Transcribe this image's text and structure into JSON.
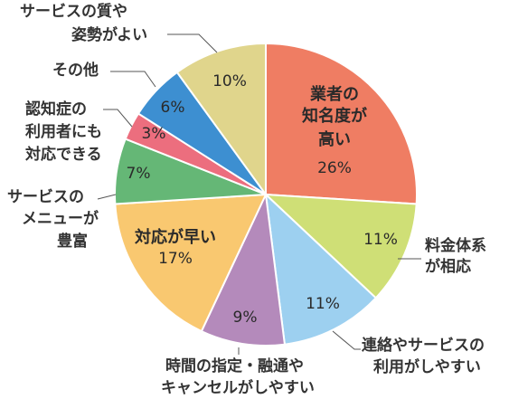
{
  "chart_data": {
    "type": "pie",
    "title": "",
    "start_angle_deg": 0,
    "direction": "clockwise",
    "slices": [
      {
        "label": "業者の知名度が高い",
        "lines": [
          "業者の",
          "知名度が",
          "高い"
        ],
        "value": 26,
        "display": "26%",
        "color": "#ef7d63",
        "label_position": "inside"
      },
      {
        "label": "料金体系が相応",
        "lines": [
          "料金体系",
          "が相応"
        ],
        "value": 11,
        "display": "11%",
        "color": "#cfdf76",
        "label_position": "outside"
      },
      {
        "label": "連絡やサービスの利用がしやすい",
        "lines": [
          "連絡やサービスの",
          "利用がしやすい"
        ],
        "value": 11,
        "display": "11%",
        "color": "#9dd0f0",
        "label_position": "outside"
      },
      {
        "label": "時間の指定・融通やキャンセルがしやすい",
        "lines": [
          "時間の指定・融通や",
          "キャンセルがしやすい"
        ],
        "value": 9,
        "display": "9%",
        "color": "#b48abb",
        "label_position": "outside"
      },
      {
        "label": "対応が早い",
        "lines": [
          "対応が早い"
        ],
        "value": 17,
        "display": "17%",
        "color": "#f9c870",
        "label_position": "inside"
      },
      {
        "label": "サービスのメニューが豊富",
        "lines": [
          "サービスの",
          "メニューが",
          "豊富"
        ],
        "value": 7,
        "display": "7%",
        "color": "#65b776",
        "label_position": "outside"
      },
      {
        "label": "認知症の利用者にも対応できる",
        "lines": [
          "認知症の",
          "利用者にも",
          "対応できる"
        ],
        "value": 3,
        "display": "3%",
        "color": "#ec6e7e",
        "label_position": "outside"
      },
      {
        "label": "その他",
        "lines": [
          "その他"
        ],
        "value": 6,
        "display": "6%",
        "color": "#3d8fd1",
        "label_position": "outside"
      },
      {
        "label": "サービスの質や姿勢がよい",
        "lines": [
          "サービスの質や",
          "姿勢がよい"
        ],
        "value": 10,
        "display": "10%",
        "color": "#e0d58c",
        "label_position": "outside"
      }
    ]
  }
}
